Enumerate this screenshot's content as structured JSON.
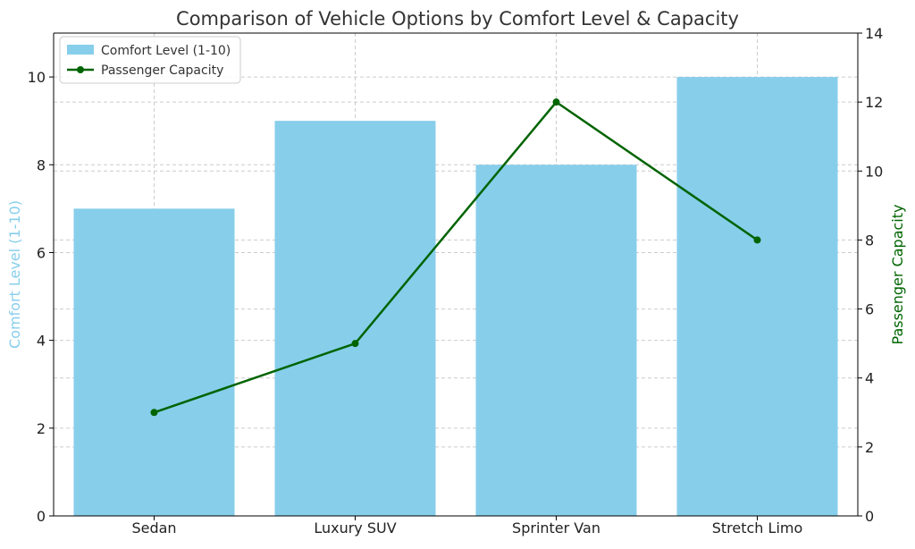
{
  "chart_data": {
    "type": "bar",
    "title": "Comparison of Vehicle Options by Comfort Level & Capacity",
    "categories": [
      "Sedan",
      "Luxury SUV",
      "Sprinter Van",
      "Stretch Limo"
    ],
    "y_left": {
      "label": "Comfort Level (1-10)",
      "ylim": [
        0,
        11
      ],
      "ticks": [
        0,
        2,
        4,
        6,
        8,
        10
      ],
      "color": "#87ceeb"
    },
    "y_right": {
      "label": "Passenger Capacity",
      "ylim": [
        0,
        14
      ],
      "ticks": [
        0,
        2,
        4,
        6,
        8,
        10,
        12,
        14
      ],
      "color": "#006400"
    },
    "series": [
      {
        "name": "Comfort Level (1-10)",
        "type": "bar",
        "axis": "left",
        "color": "#87ceeb",
        "values": [
          7,
          9,
          8,
          10
        ]
      },
      {
        "name": "Passenger Capacity",
        "type": "line",
        "axis": "right",
        "color": "#006400",
        "marker": "circle",
        "values": [
          3,
          5,
          12,
          8
        ]
      }
    ],
    "grid": true,
    "legend_position": "top-left"
  }
}
